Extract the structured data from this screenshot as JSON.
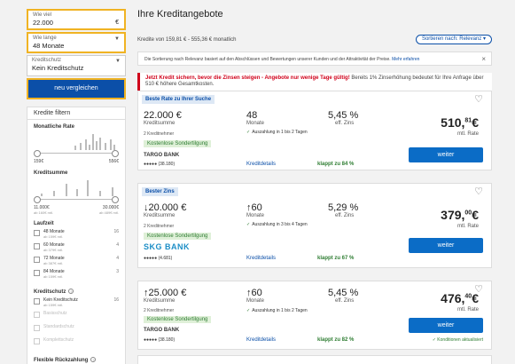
{
  "left": {
    "amount_label": "Wie viel",
    "amount_value": "22.000",
    "amount_currency": "€",
    "duration_label": "Wie lange",
    "duration_value": "48 Monate",
    "insurance_label": "Kreditschutz",
    "insurance_value": "Kein Kreditschutz",
    "compare_button": "neu vergleichen",
    "filter_title": "Kredite filtern",
    "monthly_rate": {
      "title": "Monatliche Rate",
      "min": "159€",
      "max": "556€"
    },
    "credit_sum": {
      "title": "Kreditsumme",
      "min": "11.000€",
      "min_sub": "ab 160€ mtl.",
      "max": "30.000€",
      "max_sub": "ab 489€ mtl."
    },
    "term": {
      "title": "Laufzeit",
      "items": [
        {
          "label": "48 Monate",
          "sub": "ab 159€ mtl.",
          "count": "16"
        },
        {
          "label": "60 Monate",
          "sub": "ab 379€ mtl.",
          "count": "4"
        },
        {
          "label": "72 Monate",
          "sub": "ab 387€ mtl.",
          "count": "4"
        },
        {
          "label": "84 Monate",
          "sub": "ab 159€ mtl.",
          "count": "3"
        }
      ]
    },
    "protection": {
      "title": "Kreditschutz",
      "items": [
        {
          "label": "Kein Kreditschutz",
          "sub": "ab 159€ mtl.",
          "count": "16",
          "disabled": false
        },
        {
          "label": "Basisschutz",
          "disabled": true
        },
        {
          "label": "Standardschutz",
          "disabled": true
        },
        {
          "label": "Komplettschutz",
          "disabled": true
        }
      ]
    },
    "flex_title": "Flexible Rückzahlung"
  },
  "main": {
    "title": "Ihre Kreditangebote",
    "range_text": "Kredite von 159,81 € - 555,36 € monatlich",
    "sort_label": "Sortieren nach: Relevanz",
    "notice_text": "Die Sortierung nach Relevanz basiert auf den Abschlüssen und Bewertungen unserer Kunden und der Attraktivität der Preise.",
    "notice_link": "Mehr erfahren",
    "warn_bold": "Jetzt Kredit sichern, bevor die Zinsen steigen - Angebote nur wenige Tage gültig!",
    "warn_text": " Bereits 1% Zinserhöhung bedeutet für Ihre Anfrage über 510 € höhere Gesamtkosten."
  },
  "offers": [
    {
      "tag": "Beste Rate zu Ihrer Suche",
      "amount": "22.000 €",
      "amount_label": "Kreditsumme",
      "borrowers": "2 Kreditnehmer",
      "early": "Kostenlose Sondertilgung",
      "bank": "TARGO BANK",
      "stars": "●●●●● (38.180)",
      "months": "48",
      "months_label": "Monate",
      "payout": "Auszahlung in 1 bis 2 Tagen",
      "rate": "5,45 %",
      "rate_label": "eff. Zins",
      "details": "Kreditdetails",
      "chance": "klappt zu 84 %",
      "price": "510,",
      "price_cents": "81",
      "price_unit": "€",
      "price_label": "mtl. Rate",
      "button": "weiter",
      "cond": ""
    },
    {
      "tag": "Bester Zins",
      "amount": "↓20.000 €",
      "amount_label": "Kreditsumme",
      "borrowers": "2 Kreditnehmer",
      "early": "Kostenlose Sondertilgung",
      "bank": "SKG BANK",
      "stars": "●●●●● (4.681)",
      "months": "↑60",
      "months_label": "Monate",
      "payout": "Auszahlung in 3 bis 4 Tagen",
      "rate": "5,29 %",
      "rate_label": "eff. Zins",
      "details": "Kreditdetails",
      "chance": "klappt zu 67 %",
      "price": "379,",
      "price_cents": "00",
      "price_unit": "€",
      "price_label": "mtl. Rate",
      "button": "weiter",
      "cond": ""
    },
    {
      "tag": "",
      "amount": "↑25.000 €",
      "amount_label": "Kreditsumme",
      "borrowers": "2 Kreditnehmer",
      "early": "Kostenlose Sondertilgung",
      "bank": "TARGO BANK",
      "stars": "●●●●● (38.180)",
      "months": "↑60",
      "months_label": "Monate",
      "payout": "Auszahlung in 1 bis 2 Tagen",
      "rate": "5,45 %",
      "rate_label": "eff. Zins",
      "details": "Kreditdetails",
      "chance": "klappt zu 82 %",
      "price": "476,",
      "price_cents": "40",
      "price_unit": "€",
      "price_label": "mtl. Rate",
      "button": "weiter",
      "cond": "✓ Konditionen aktualisiert"
    }
  ]
}
